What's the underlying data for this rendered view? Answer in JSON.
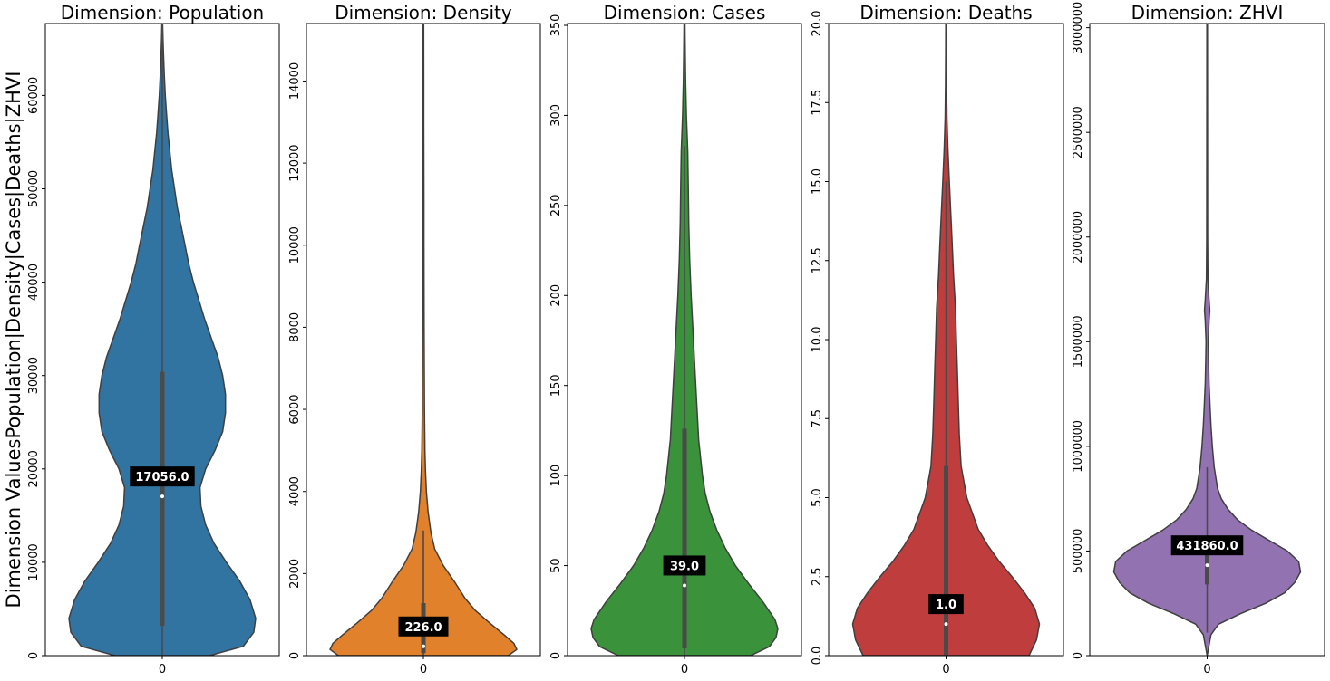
{
  "y_axis_label": "Dimension ValuesPopulation|Density|Cases|Deaths|ZHVI",
  "chart_data": [
    {
      "type": "violin",
      "title": "Dimension: Population",
      "color": "#3274a1",
      "x_category": "0",
      "ylim": [
        0,
        67700
      ],
      "yticks": [
        0,
        10000,
        20000,
        30000,
        40000,
        50000,
        60000
      ],
      "median": 17056.0,
      "median_label": "17056.0",
      "q1": 3200,
      "q3": 30400,
      "whisker_low": 0,
      "whisker_high": 67700,
      "density_profile": [
        [
          0,
          0.5
        ],
        [
          1000,
          0.86
        ],
        [
          2500,
          0.97
        ],
        [
          4000,
          0.99
        ],
        [
          6000,
          0.93
        ],
        [
          8000,
          0.82
        ],
        [
          10000,
          0.68
        ],
        [
          12000,
          0.55
        ],
        [
          14000,
          0.46
        ],
        [
          16000,
          0.41
        ],
        [
          18000,
          0.4
        ],
        [
          20000,
          0.46
        ],
        [
          22000,
          0.56
        ],
        [
          24000,
          0.64
        ],
        [
          26000,
          0.67
        ],
        [
          28000,
          0.67
        ],
        [
          30000,
          0.64
        ],
        [
          32000,
          0.59
        ],
        [
          34000,
          0.52
        ],
        [
          36000,
          0.45
        ],
        [
          38000,
          0.39
        ],
        [
          40000,
          0.33
        ],
        [
          42000,
          0.28
        ],
        [
          44000,
          0.24
        ],
        [
          46000,
          0.2
        ],
        [
          48000,
          0.16
        ],
        [
          50000,
          0.13
        ],
        [
          52000,
          0.1
        ],
        [
          54000,
          0.08
        ],
        [
          56000,
          0.06
        ],
        [
          58000,
          0.045
        ],
        [
          60000,
          0.032
        ],
        [
          62000,
          0.022
        ],
        [
          64000,
          0.014
        ],
        [
          66000,
          0.008
        ],
        [
          67700,
          0.004
        ]
      ]
    },
    {
      "type": "violin",
      "title": "Dimension: Density",
      "color": "#e1812c",
      "x_category": "0",
      "ylim": [
        0,
        15400
      ],
      "yticks": [
        0,
        2000,
        4000,
        6000,
        8000,
        10000,
        12000,
        14000
      ],
      "median": 226.0,
      "median_label": "226.0",
      "q1": 60,
      "q3": 1280,
      "whisker_low": 0,
      "whisker_high": 3050,
      "density_profile": [
        [
          0,
          0.9
        ],
        [
          150,
          0.99
        ],
        [
          300,
          0.96
        ],
        [
          500,
          0.86
        ],
        [
          800,
          0.7
        ],
        [
          1100,
          0.55
        ],
        [
          1400,
          0.44
        ],
        [
          1800,
          0.33
        ],
        [
          2200,
          0.21
        ],
        [
          2600,
          0.12
        ],
        [
          3000,
          0.08
        ],
        [
          3500,
          0.05
        ],
        [
          4000,
          0.032
        ],
        [
          4500,
          0.022
        ],
        [
          5000,
          0.016
        ],
        [
          6000,
          0.012
        ],
        [
          7000,
          0.01
        ],
        [
          8000,
          0.008
        ],
        [
          9000,
          0.007
        ],
        [
          10000,
          0.006
        ],
        [
          11000,
          0.006
        ],
        [
          12000,
          0.005
        ],
        [
          13000,
          0.004
        ],
        [
          14000,
          0.004
        ],
        [
          15400,
          0.003
        ]
      ]
    },
    {
      "type": "violin",
      "title": "Dimension: Cases",
      "color": "#3a923a",
      "x_category": "0",
      "ylim": [
        0,
        351
      ],
      "yticks": [
        0,
        50,
        100,
        150,
        200,
        250,
        300,
        350
      ],
      "median": 39.0,
      "median_label": "39.0",
      "q1": 4,
      "q3": 126,
      "whisker_low": 0,
      "whisker_high": 283,
      "density_profile": [
        [
          0,
          0.7
        ],
        [
          5,
          0.9
        ],
        [
          10,
          0.97
        ],
        [
          15,
          0.99
        ],
        [
          20,
          0.96
        ],
        [
          30,
          0.83
        ],
        [
          40,
          0.68
        ],
        [
          50,
          0.54
        ],
        [
          60,
          0.43
        ],
        [
          70,
          0.34
        ],
        [
          80,
          0.27
        ],
        [
          90,
          0.22
        ],
        [
          100,
          0.19
        ],
        [
          120,
          0.15
        ],
        [
          140,
          0.13
        ],
        [
          160,
          0.11
        ],
        [
          180,
          0.09
        ],
        [
          200,
          0.07
        ],
        [
          220,
          0.055
        ],
        [
          240,
          0.045
        ],
        [
          260,
          0.04
        ],
        [
          280,
          0.035
        ],
        [
          300,
          0.02
        ],
        [
          320,
          0.012
        ],
        [
          340,
          0.007
        ],
        [
          351,
          0.005
        ]
      ]
    },
    {
      "type": "violin",
      "title": "Dimension: Deaths",
      "color": "#c03d3e",
      "x_category": "0",
      "ylim": [
        0,
        20
      ],
      "yticks": [
        0.0,
        2.5,
        5.0,
        7.5,
        10.0,
        12.5,
        15.0,
        17.5,
        20.0
      ],
      "median": 1.0,
      "median_label": "1.0",
      "q1": 0,
      "q3": 6,
      "whisker_low": 0,
      "whisker_high": 15,
      "density_profile": [
        [
          0,
          0.88
        ],
        [
          0.5,
          0.96
        ],
        [
          1,
          0.99
        ],
        [
          1.5,
          0.94
        ],
        [
          2,
          0.83
        ],
        [
          2.5,
          0.7
        ],
        [
          3,
          0.56
        ],
        [
          3.5,
          0.44
        ],
        [
          4,
          0.34
        ],
        [
          5,
          0.22
        ],
        [
          6,
          0.16
        ],
        [
          7,
          0.14
        ],
        [
          8,
          0.13
        ],
        [
          9,
          0.12
        ],
        [
          10,
          0.11
        ],
        [
          11,
          0.1
        ],
        [
          12,
          0.08
        ],
        [
          13,
          0.065
        ],
        [
          14,
          0.05
        ],
        [
          15,
          0.035
        ],
        [
          16,
          0.02
        ],
        [
          17,
          0.01
        ],
        [
          18,
          0.006
        ],
        [
          19,
          0.004
        ],
        [
          20,
          0.003
        ]
      ]
    },
    {
      "type": "violin",
      "title": "Dimension: ZHVI",
      "color": "#9372b2",
      "x_category": "0",
      "ylim": [
        0,
        3020000
      ],
      "yticks": [
        0,
        500000,
        1000000,
        1500000,
        2000000,
        2500000,
        3000000
      ],
      "median": 431860.0,
      "median_label": "431860.0",
      "q1": 340000,
      "q3": 570000,
      "whisker_low": 110000,
      "whisker_high": 900000,
      "density_profile": [
        [
          0,
          0.0
        ],
        [
          100000,
          0.04
        ],
        [
          150000,
          0.12
        ],
        [
          200000,
          0.35
        ],
        [
          250000,
          0.62
        ],
        [
          300000,
          0.82
        ],
        [
          350000,
          0.93
        ],
        [
          400000,
          0.99
        ],
        [
          450000,
          0.97
        ],
        [
          500000,
          0.85
        ],
        [
          550000,
          0.66
        ],
        [
          600000,
          0.47
        ],
        [
          650000,
          0.32
        ],
        [
          700000,
          0.22
        ],
        [
          750000,
          0.15
        ],
        [
          800000,
          0.11
        ],
        [
          900000,
          0.075
        ],
        [
          1000000,
          0.055
        ],
        [
          1100000,
          0.04
        ],
        [
          1200000,
          0.03
        ],
        [
          1300000,
          0.02
        ],
        [
          1400000,
          0.015
        ],
        [
          1500000,
          0.012
        ],
        [
          1600000,
          0.02
        ],
        [
          1650000,
          0.028
        ],
        [
          1700000,
          0.02
        ],
        [
          1800000,
          0.008
        ],
        [
          2000000,
          0.005
        ],
        [
          2500000,
          0.004
        ],
        [
          3020000,
          0.003
        ]
      ]
    }
  ]
}
